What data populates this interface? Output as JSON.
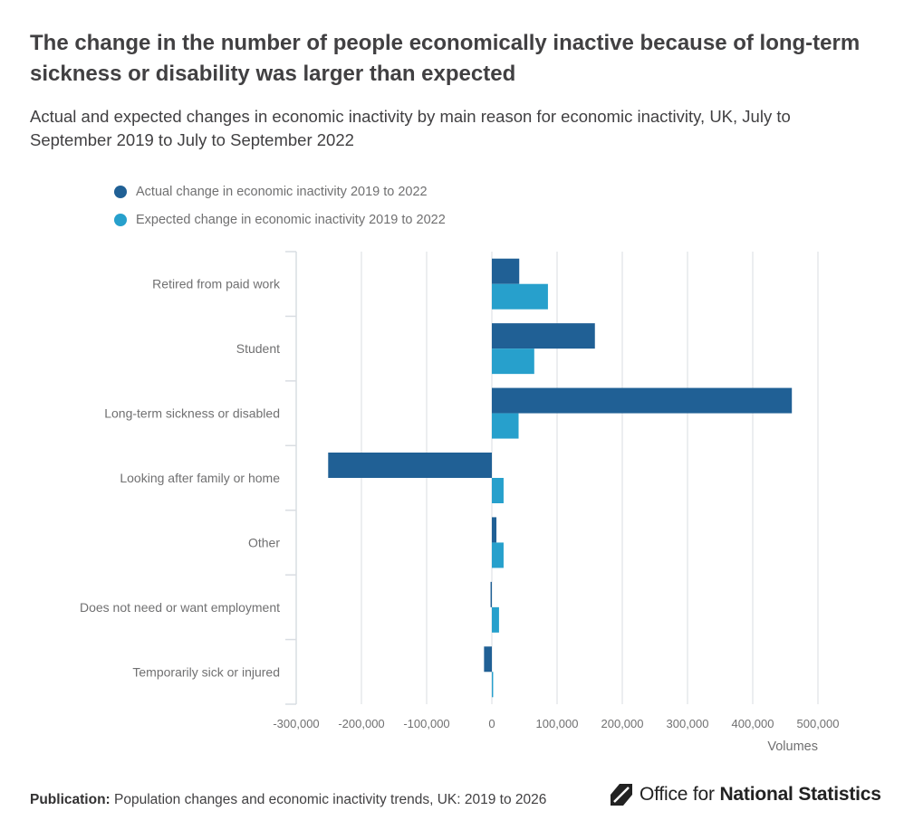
{
  "header": {
    "title": "The change in the number of people economically inactive because of long-term sickness or disability was larger than expected",
    "subtitle": "Actual and expected changes in economic inactivity by main reason for economic inactivity, UK, July to September 2019 to July to September 2022"
  },
  "colors": {
    "actual": "#206095",
    "expected": "#27a0cc",
    "grid": "#d9dde2",
    "tick_text": "#707071"
  },
  "chart_data": {
    "type": "bar",
    "orientation": "horizontal",
    "categories": [
      "Retired from paid work",
      "Student",
      "Long-term sickness or disabled",
      "Looking after family or home",
      "Other",
      "Does not need or want employment",
      "Temporarily sick or injured"
    ],
    "series": [
      {
        "name": "Actual change in economic inactivity 2019 to 2022",
        "values": [
          42000,
          158000,
          460000,
          -251000,
          7000,
          -2000,
          -12000
        ]
      },
      {
        "name": "Expected change in economic inactivity 2019 to 2022",
        "values": [
          86000,
          65000,
          41000,
          18000,
          18000,
          11000,
          2000
        ]
      }
    ],
    "xlim": [
      -300000,
      500000
    ],
    "xticks": [
      -300000,
      -200000,
      -100000,
      0,
      100000,
      200000,
      300000,
      400000,
      500000
    ],
    "xtick_labels": [
      "-300,000",
      "-200,000",
      "-100,000",
      "0",
      "100,000",
      "200,000",
      "300,000",
      "400,000",
      "500,000"
    ],
    "xlabel": "Volumes",
    "legend_position": "top-left",
    "grid": true
  },
  "footer": {
    "publication_label": "Publication:",
    "publication_text": "Population changes and economic inactivity trends, UK: 2019 to 2026"
  },
  "logo": {
    "text_regular": "Office for",
    "text_bold": "National Statistics"
  }
}
